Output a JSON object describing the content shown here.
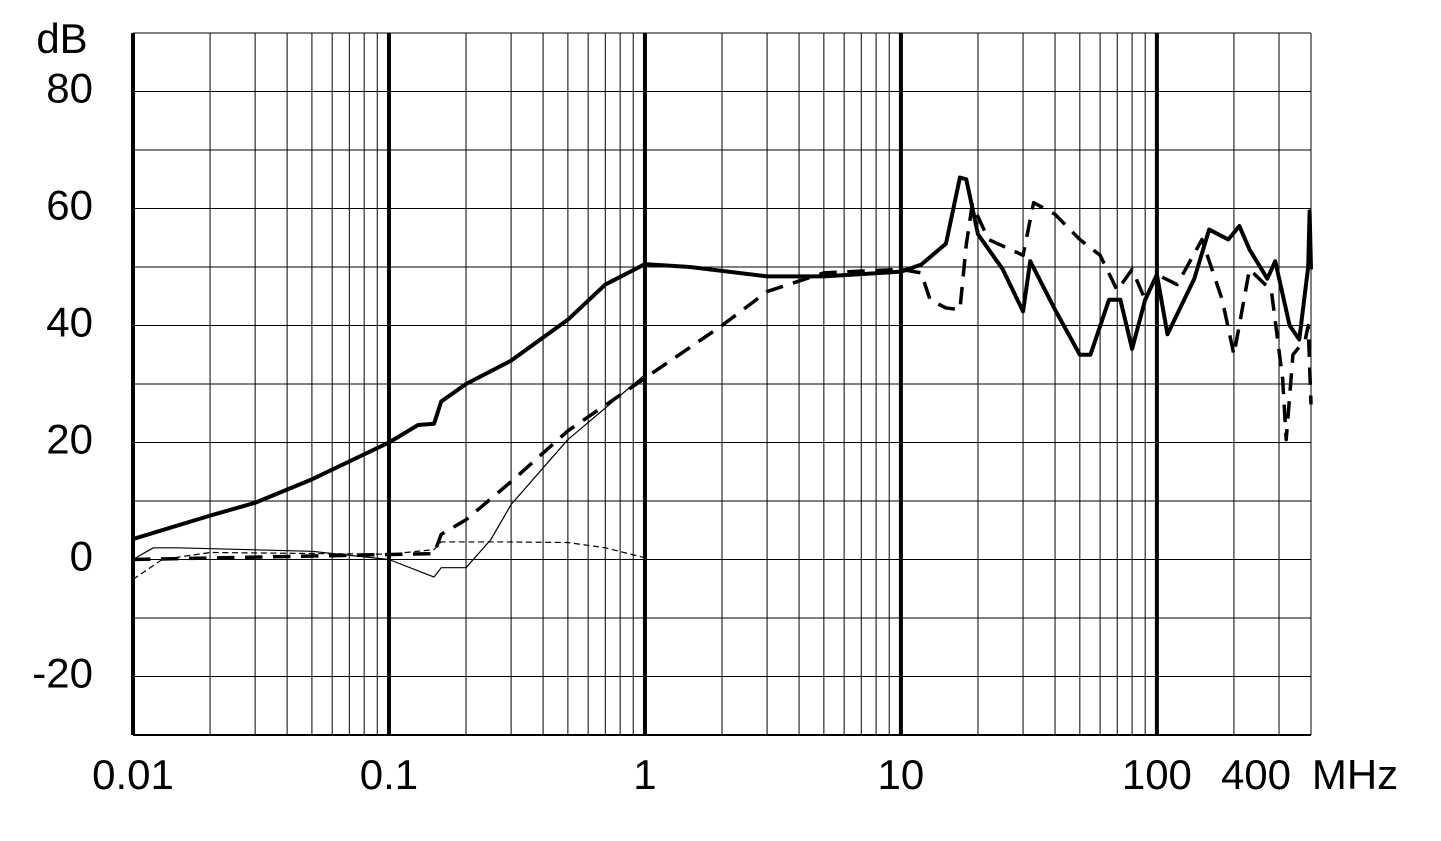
{
  "chart_data": {
    "type": "line",
    "x_unit": "MHz",
    "y_unit": "dB",
    "log_x": true,
    "grid": true,
    "xlim": [
      0.01,
      400
    ],
    "xticks": [
      0.01,
      0.1,
      1,
      10,
      100,
      400
    ],
    "ylim": [
      -30,
      90
    ],
    "yticks": [
      -20,
      0,
      20,
      40,
      60,
      80
    ],
    "series": [
      {
        "color": "#000000",
        "line_width": 4,
        "dashed": false,
        "x": [
          0.01,
          0.02,
          0.03,
          0.05,
          0.1,
          0.13,
          0.15,
          0.16,
          0.2,
          0.3,
          0.5,
          0.7,
          1,
          1.5,
          3,
          5,
          10,
          12,
          15,
          17,
          18,
          20,
          25,
          30,
          32,
          40,
          50,
          55,
          65,
          72,
          80,
          90,
          100,
          110,
          140,
          160,
          190,
          210,
          230,
          270,
          290,
          330,
          360,
          380,
          390,
          395,
          400
        ],
        "values": [
          3.5,
          7.5,
          9.7,
          13.7,
          20,
          23,
          23.2,
          27,
          30,
          34,
          41,
          47,
          50.5,
          50,
          48.4,
          48.4,
          49.2,
          50.4,
          54,
          65.3,
          65,
          55.6,
          49.6,
          42.4,
          51,
          42.7,
          35,
          35,
          44.4,
          44.4,
          36,
          44.4,
          48.7,
          38.5,
          48,
          56.4,
          54.7,
          57,
          53,
          48,
          51,
          40,
          37.6,
          46,
          50,
          59.5,
          49.6
        ]
      },
      {
        "color": "#000000",
        "line_width": 3.5,
        "dashed": true,
        "x": [
          0.01,
          0.15,
          0.16,
          0.2,
          0.3,
          0.5,
          1,
          2,
          3,
          5,
          10,
          12,
          13,
          15,
          17,
          18,
          19,
          22,
          30,
          33,
          40,
          50,
          60,
          70,
          80,
          90,
          100,
          120,
          150,
          180,
          200,
          230,
          280,
          310,
          320,
          340,
          380,
          390,
          400
        ],
        "values": [
          0,
          1,
          4.3,
          6.8,
          13.3,
          22,
          31,
          40,
          45.8,
          49,
          49.6,
          49,
          44.4,
          43,
          42.7,
          53.8,
          60.7,
          54.7,
          52,
          61,
          59,
          54.7,
          52,
          46,
          49.6,
          44.4,
          48.7,
          47,
          54.7,
          44.4,
          35,
          49.6,
          46,
          30.8,
          20.5,
          35,
          37.6,
          40,
          26.5
        ]
      },
      {
        "color": "#000000",
        "line_width": 1.2,
        "dashed": false,
        "x": [
          0.01,
          0.012,
          0.015,
          0.05,
          0.1,
          0.15,
          0.16,
          0.2,
          0.25,
          0.3,
          0.5,
          1
        ],
        "values": [
          0,
          2,
          2,
          1.4,
          0,
          -3,
          -1.4,
          -1.4,
          3.4,
          9.4,
          20.5,
          31.6
        ]
      },
      {
        "color": "#000000",
        "line_width": 1.2,
        "dashed": true,
        "x": [
          0.01,
          0.013,
          0.02,
          0.1,
          0.15,
          0.16,
          0.3,
          0.5,
          0.7,
          1
        ],
        "values": [
          -3.4,
          0,
          1.2,
          0.9,
          1.7,
          3,
          3,
          2.9,
          2,
          0.3
        ]
      }
    ]
  }
}
